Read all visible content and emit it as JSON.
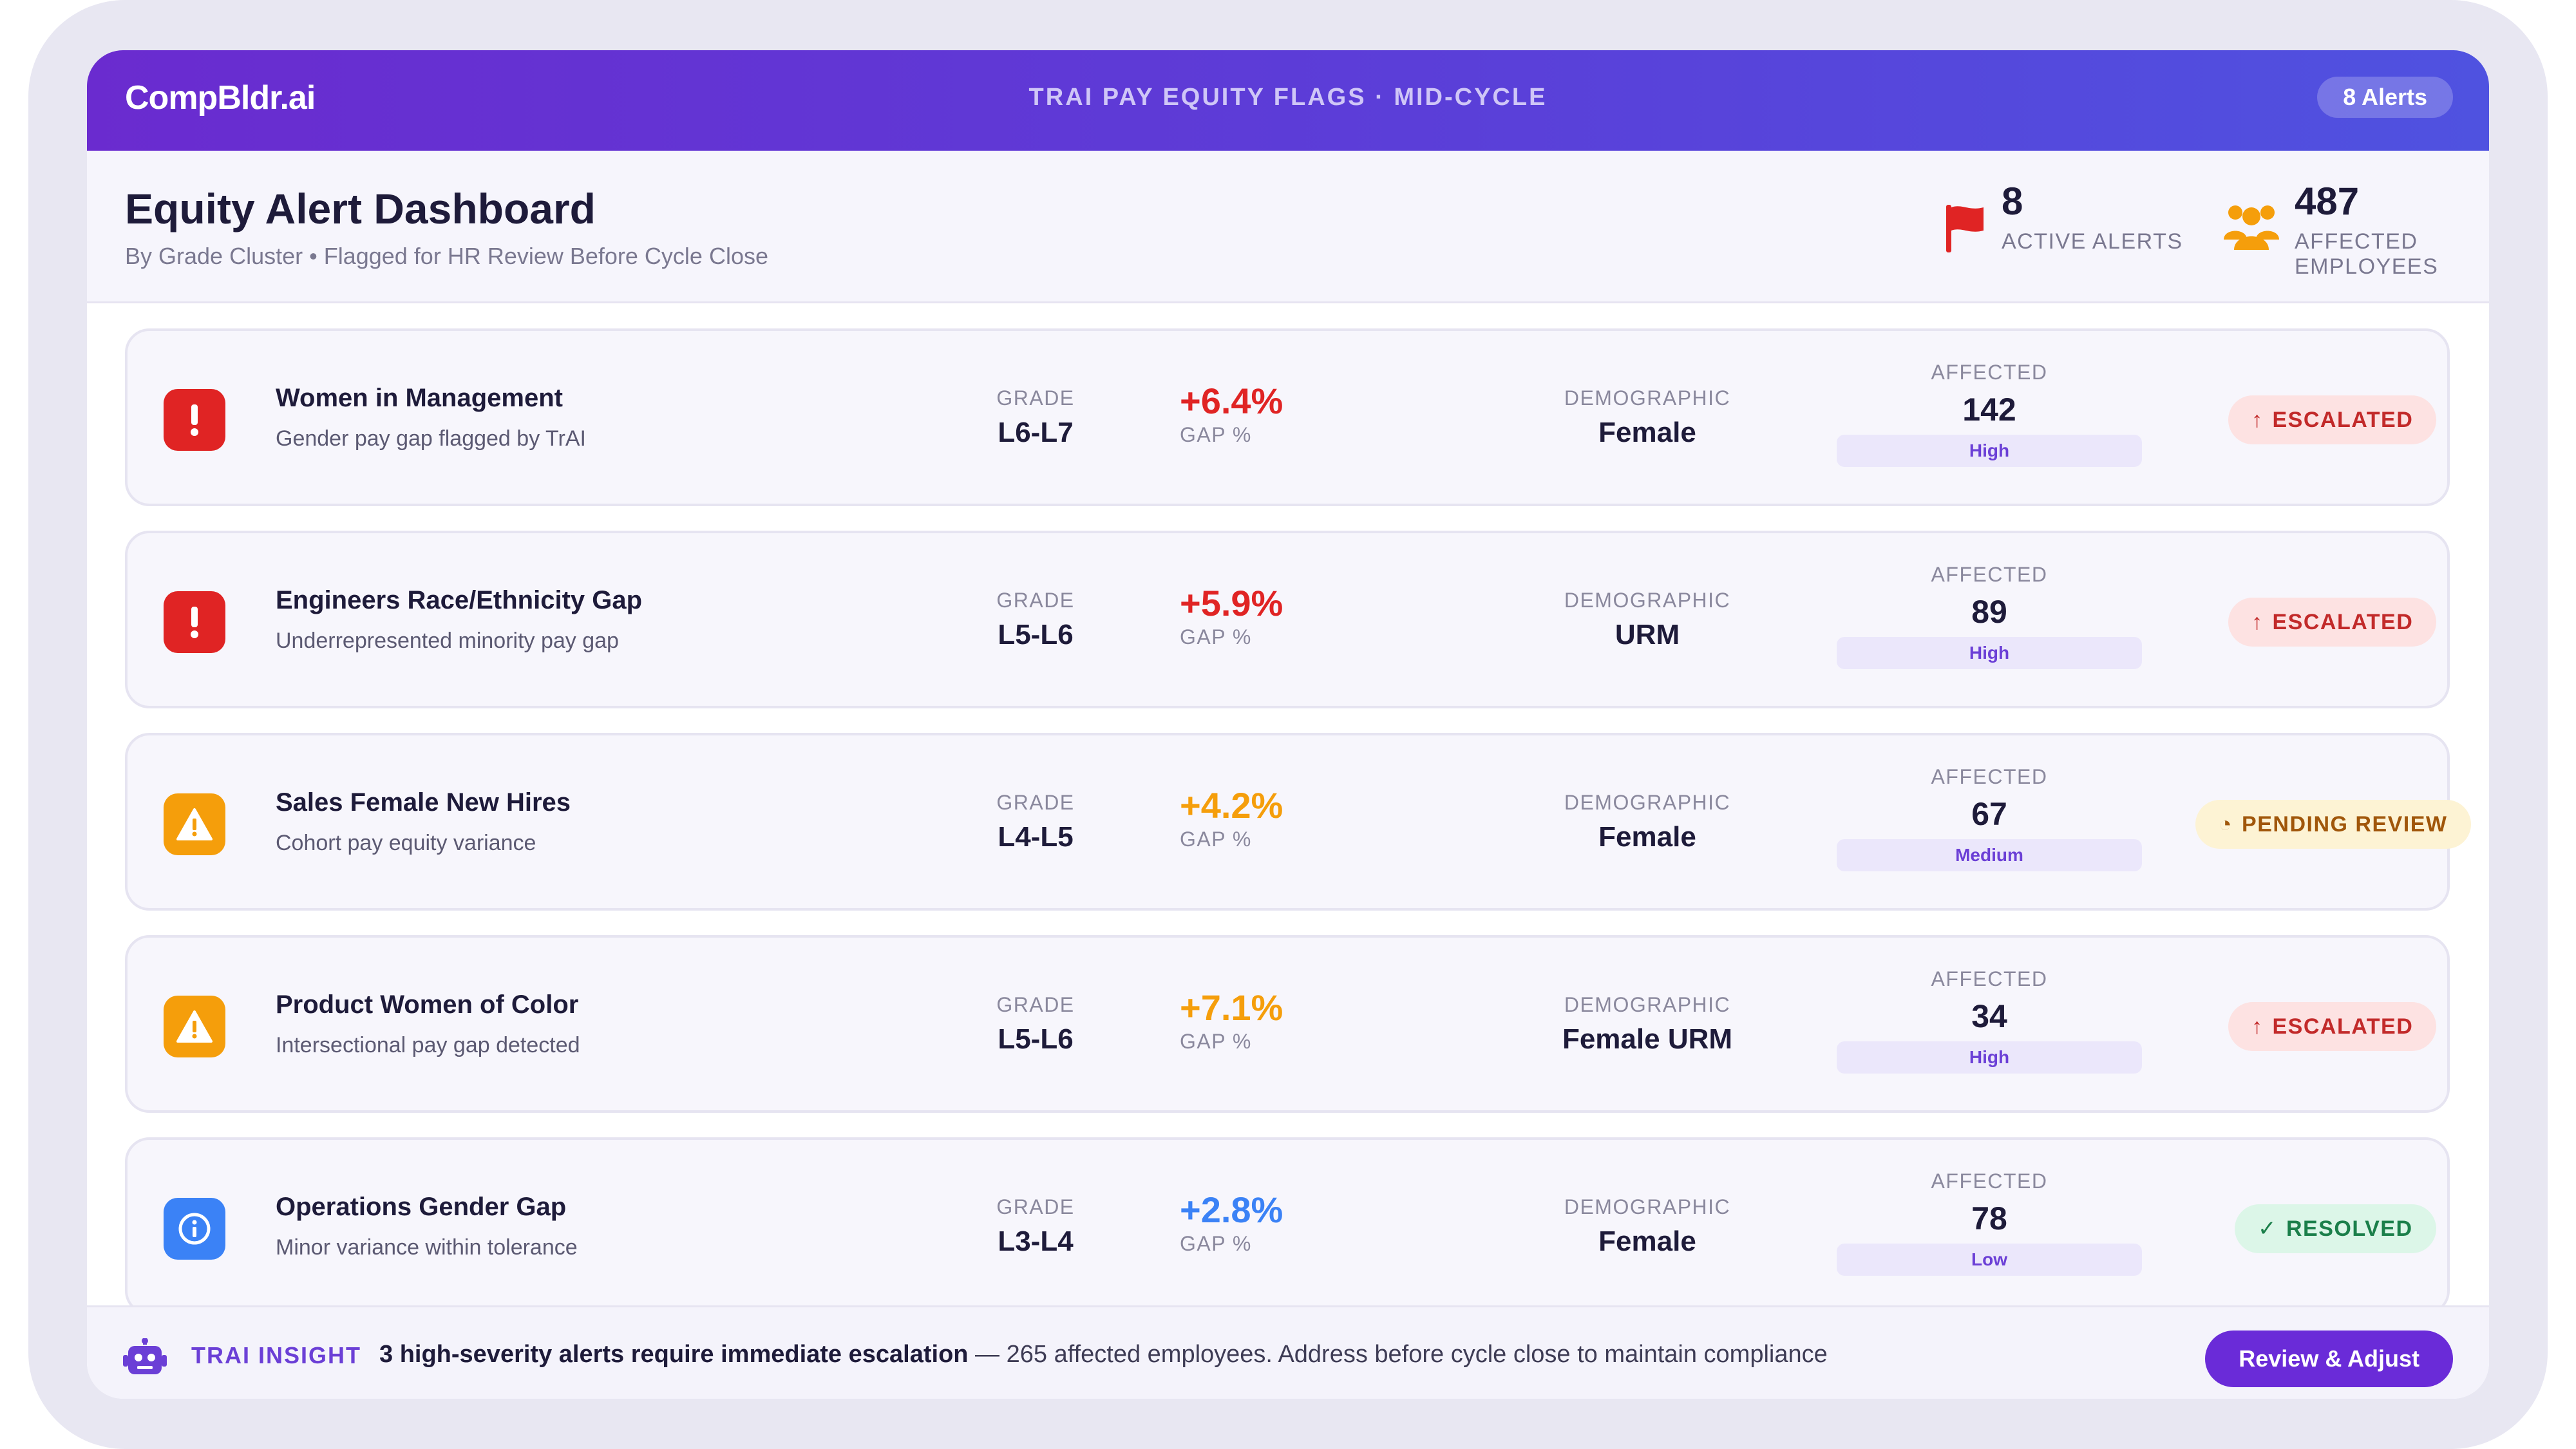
{
  "app": {
    "logo": "CompBldr.ai",
    "title": "TRAI PAY EQUITY FLAGS · MID-CYCLE",
    "alerts_badge": "8 Alerts"
  },
  "header": {
    "title": "Equity Alert Dashboard",
    "subtitle": "By Grade Cluster • Flagged for HR Review Before Cycle Close",
    "stats": [
      {
        "value": "8",
        "label": "ACTIVE ALERTS",
        "icon": "flag-icon",
        "color": "#e02424"
      },
      {
        "value": "487",
        "label": "AFFECTED EMPLOYEES",
        "icon": "people-icon",
        "color": "#f59e0b"
      }
    ]
  },
  "labels": {
    "grade": "GRADE",
    "gap": "GAP %",
    "demographic": "DEMOGRAPHIC",
    "affected": "AFFECTED"
  },
  "alerts": [
    {
      "title": "Women in Management",
      "subtitle": "Gender pay gap flagged by TrAI",
      "grade": "L6-L7",
      "gap": "+6.4%",
      "demographic": "Female",
      "affected": "142",
      "severity": "High",
      "status": "ESCALATED",
      "status_type": "escalated",
      "icon": "error-icon",
      "accent": "#e02424"
    },
    {
      "title": "Engineers Race/Ethnicity Gap",
      "subtitle": "Underrepresented minority pay gap",
      "grade": "L5-L6",
      "gap": "+5.9%",
      "demographic": "URM",
      "affected": "89",
      "severity": "High",
      "status": "ESCALATED",
      "status_type": "escalated",
      "icon": "error-icon",
      "accent": "#e02424"
    },
    {
      "title": "Sales Female New Hires",
      "subtitle": "Cohort pay equity variance",
      "grade": "L4-L5",
      "gap": "+4.2%",
      "demographic": "Female",
      "affected": "67",
      "severity": "Medium",
      "status": "PENDING REVIEW",
      "status_type": "pending",
      "icon": "warning-icon",
      "accent": "#f59e0b"
    },
    {
      "title": "Product Women of Color",
      "subtitle": "Intersectional pay gap detected",
      "grade": "L5-L6",
      "gap": "+7.1%",
      "demographic": "Female URM",
      "affected": "34",
      "severity": "High",
      "status": "ESCALATED",
      "status_type": "escalated",
      "icon": "warning-icon",
      "accent": "#f59e0b"
    },
    {
      "title": "Operations Gender Gap",
      "subtitle": "Minor variance within tolerance",
      "grade": "L3-L4",
      "gap": "+2.8%",
      "demographic": "Female",
      "affected": "78",
      "severity": "Low",
      "status": "RESOLVED",
      "status_type": "resolved",
      "icon": "info-icon",
      "accent": "#3b82f6"
    }
  ],
  "footer": {
    "label": "TRAI INSIGHT",
    "text_bold": "3 high-severity alerts require immediate escalation",
    "text_rest": " — 265 affected employees. Address before cycle close to maintain compliance",
    "button": "Review & Adjust"
  }
}
